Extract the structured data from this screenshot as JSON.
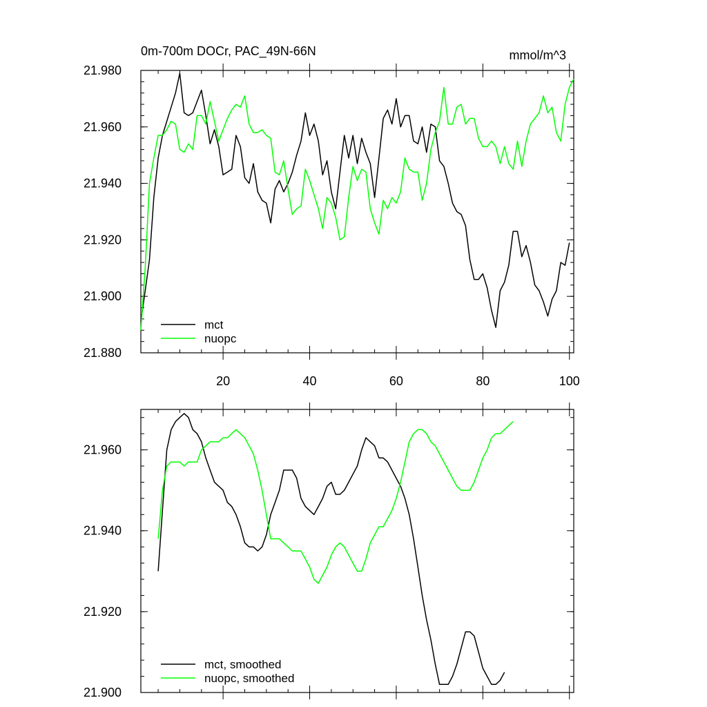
{
  "chart_data": [
    {
      "type": "line",
      "title": "0m-700m DOCr, PAC_49N-66N",
      "units": "mmol/m^3",
      "xlim": [
        1,
        101
      ],
      "ylim": [
        21.88,
        21.98
      ],
      "x_ticks": [
        20,
        40,
        60,
        80,
        100
      ],
      "y_ticks": [
        "21.880",
        "21.900",
        "21.920",
        "21.940",
        "21.960",
        "21.980"
      ],
      "legend_position": "bottom-left",
      "series": [
        {
          "name": "mct",
          "color": "#000000",
          "x_start": 1,
          "values": [
            21.891,
            21.902,
            21.913,
            21.935,
            21.949,
            21.957,
            21.962,
            21.967,
            21.972,
            21.979,
            21.965,
            21.964,
            21.965,
            21.969,
            21.973,
            21.964,
            21.954,
            21.959,
            21.953,
            21.943,
            21.944,
            21.945,
            21.957,
            21.953,
            21.942,
            21.94,
            21.947,
            21.937,
            21.934,
            21.933,
            21.926,
            21.938,
            21.941,
            21.937,
            21.94,
            21.944,
            21.95,
            21.955,
            21.965,
            21.957,
            21.961,
            21.955,
            21.943,
            21.948,
            21.937,
            21.931,
            21.944,
            21.957,
            21.949,
            21.957,
            21.947,
            21.956,
            21.951,
            21.947,
            21.935,
            21.949,
            21.963,
            21.966,
            21.961,
            21.97,
            21.96,
            21.964,
            21.964,
            21.955,
            21.954,
            21.96,
            21.951,
            21.961,
            21.96,
            21.948,
            21.946,
            21.94,
            21.933,
            21.93,
            21.929,
            21.925,
            21.913,
            21.906,
            21.906,
            21.908,
            21.903,
            21.895,
            21.889,
            21.902,
            21.905,
            21.911,
            21.923,
            21.923,
            21.914,
            21.918,
            21.912,
            21.904,
            21.902,
            21.898,
            21.893,
            21.899,
            21.902,
            21.912,
            21.911,
            21.919
          ]
        },
        {
          "name": "nuopc",
          "color": "#00ff00",
          "x_start": 1,
          "values": [
            21.888,
            21.91,
            21.94,
            21.949,
            21.957,
            21.957,
            21.959,
            21.962,
            21.961,
            21.952,
            21.951,
            21.954,
            21.952,
            21.964,
            21.964,
            21.961,
            21.969,
            21.962,
            21.955,
            21.959,
            21.963,
            21.966,
            21.968,
            21.967,
            21.971,
            21.961,
            21.958,
            21.958,
            21.959,
            21.957,
            21.956,
            21.944,
            21.943,
            21.948,
            21.938,
            21.929,
            21.931,
            21.932,
            21.945,
            21.941,
            21.936,
            21.931,
            21.924,
            21.935,
            21.933,
            21.928,
            21.92,
            21.921,
            21.935,
            21.946,
            21.941,
            21.945,
            21.944,
            21.931,
            21.926,
            21.922,
            21.934,
            21.931,
            21.935,
            21.933,
            21.937,
            21.949,
            21.945,
            21.944,
            21.944,
            21.934,
            21.94,
            21.952,
            21.958,
            21.962,
            21.974,
            21.961,
            21.961,
            21.967,
            21.968,
            21.961,
            21.963,
            21.963,
            21.956,
            21.953,
            21.953,
            21.955,
            21.953,
            21.947,
            21.953,
            21.947,
            21.945,
            21.955,
            21.946,
            21.955,
            21.961,
            21.963,
            21.965,
            21.971,
            21.965,
            21.967,
            21.958,
            21.955,
            21.968,
            21.974,
            21.977
          ]
        }
      ]
    },
    {
      "type": "line",
      "xlim": [
        1,
        101
      ],
      "ylim": [
        21.9,
        21.97
      ],
      "x_ticks": [
        20,
        40,
        60,
        80,
        100
      ],
      "y_ticks": [
        "21.900",
        "21.920",
        "21.940",
        "21.960"
      ],
      "legend_position": "bottom-left",
      "series": [
        {
          "name": "mct, smoothed",
          "color": "#000000",
          "x_start": 5,
          "values": [
            21.93,
            21.945,
            21.96,
            21.965,
            21.967,
            21.968,
            21.969,
            21.968,
            21.965,
            21.964,
            21.962,
            21.958,
            21.955,
            21.952,
            21.951,
            21.95,
            21.947,
            21.946,
            21.944,
            21.941,
            21.937,
            21.936,
            21.936,
            21.935,
            21.936,
            21.939,
            21.944,
            21.947,
            21.95,
            21.955,
            21.955,
            21.955,
            21.953,
            21.948,
            21.946,
            21.945,
            21.944,
            21.946,
            21.948,
            21.951,
            21.952,
            21.949,
            21.949,
            21.95,
            21.952,
            21.954,
            21.956,
            21.96,
            21.963,
            21.962,
            21.961,
            21.958,
            21.958,
            21.957,
            21.955,
            21.953,
            21.951,
            21.948,
            21.944,
            21.938,
            21.931,
            21.924,
            21.918,
            21.913,
            21.907,
            21.902,
            21.902,
            21.902,
            21.904,
            21.907,
            21.911,
            21.915,
            21.915,
            21.914,
            21.91,
            21.906,
            21.904,
            21.902,
            21.902,
            21.903,
            21.905
          ]
        },
        {
          "name": "nuopc, smoothed",
          "color": "#00ff00",
          "x_start": 5,
          "values": [
            21.938,
            21.95,
            21.956,
            21.957,
            21.957,
            21.957,
            21.956,
            21.957,
            21.957,
            21.957,
            21.96,
            21.961,
            21.962,
            21.962,
            21.962,
            21.963,
            21.963,
            21.964,
            21.965,
            21.964,
            21.963,
            21.961,
            21.959,
            21.955,
            21.95,
            21.944,
            21.938,
            21.938,
            21.938,
            21.937,
            21.936,
            21.935,
            21.935,
            21.935,
            21.933,
            21.931,
            21.928,
            21.927,
            21.929,
            21.931,
            21.934,
            21.936,
            21.937,
            21.936,
            21.934,
            21.932,
            21.93,
            21.93,
            21.933,
            21.937,
            21.939,
            21.941,
            21.941,
            21.943,
            21.945,
            21.948,
            21.952,
            21.957,
            21.962,
            21.964,
            21.965,
            21.965,
            21.964,
            21.962,
            21.961,
            21.959,
            21.957,
            21.955,
            21.953,
            21.951,
            21.95,
            21.95,
            21.95,
            21.952,
            21.955,
            21.958,
            21.96,
            21.963,
            21.964,
            21.964,
            21.965,
            21.966,
            21.967
          ]
        }
      ]
    }
  ]
}
